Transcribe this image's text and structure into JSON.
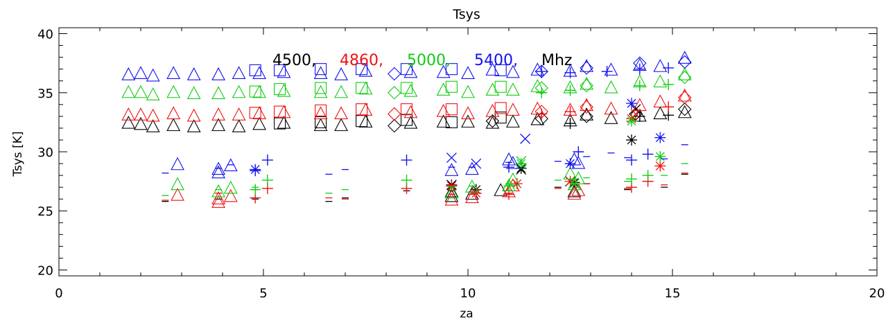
{
  "chart_data": {
    "type": "scatter",
    "title": "Tsys",
    "xlabel": "za",
    "ylabel": "Tsys [K]",
    "xlim": [
      0,
      20
    ],
    "ylim": [
      19.5,
      40.5
    ],
    "x_ticks": [
      0,
      5,
      10,
      15,
      20
    ],
    "y_ticks": [
      20,
      25,
      30,
      35,
      40
    ],
    "x_tick_labels": [
      "0",
      "5",
      "10",
      "15",
      "20"
    ],
    "y_tick_labels": [
      "20",
      "25",
      "30",
      "35",
      "40"
    ],
    "legend": {
      "placement": "top-center",
      "entries": [
        {
          "label": "4500",
          "color": "#000000"
        },
        {
          "label": "4860",
          "color": "#ee1111"
        },
        {
          "label": "5000",
          "color": "#11cc11"
        },
        {
          "label": "5400",
          "color": "#1111ee"
        }
      ],
      "unit": "Mhz"
    },
    "series": [
      {
        "color": "#000000",
        "triangles": [
          [
            1.7,
            32.4
          ],
          [
            2.0,
            32.3
          ],
          [
            2.3,
            32.1
          ],
          [
            2.8,
            32.2
          ],
          [
            3.3,
            32.1
          ],
          [
            3.9,
            32.2
          ],
          [
            4.4,
            32.1
          ],
          [
            4.9,
            32.3
          ],
          [
            5.5,
            32.4
          ],
          [
            6.4,
            32.2
          ],
          [
            6.9,
            32.2
          ],
          [
            7.5,
            32.5
          ],
          [
            8.6,
            32.4
          ],
          [
            9.4,
            32.5
          ],
          [
            10.0,
            32.5
          ],
          [
            10.6,
            32.4
          ],
          [
            11.1,
            32.5
          ],
          [
            11.7,
            32.7
          ],
          [
            12.5,
            32.6
          ],
          [
            12.9,
            33.1
          ],
          [
            13.5,
            32.8
          ],
          [
            14.2,
            33.0
          ],
          [
            14.7,
            33.2
          ],
          [
            15.3,
            33.3
          ],
          [
            9.6,
            26.6
          ],
          [
            9.6,
            26.2
          ],
          [
            10.1,
            26.4
          ],
          [
            10.8,
            26.7
          ],
          [
            12.6,
            26.6
          ]
        ],
        "squares": [
          [
            5.4,
            32.4
          ],
          [
            6.4,
            32.5
          ],
          [
            7.4,
            32.6
          ],
          [
            8.5,
            32.7
          ],
          [
            9.6,
            32.5
          ],
          [
            10.8,
            32.9
          ]
        ],
        "diamonds": [
          [
            8.2,
            32.2
          ],
          [
            10.6,
            32.6
          ],
          [
            11.8,
            32.8
          ],
          [
            12.9,
            33.0
          ],
          [
            14.1,
            33.2
          ],
          [
            15.3,
            33.6
          ]
        ],
        "plus": [
          [
            12.5,
            32.4
          ],
          [
            14.2,
            33.0
          ],
          [
            14.9,
            33.1
          ]
        ],
        "asterisk": [
          [
            14.0,
            31.0
          ],
          [
            9.6,
            27.2
          ],
          [
            10.2,
            26.8
          ],
          [
            11.3,
            28.6
          ],
          [
            12.6,
            27.4
          ]
        ],
        "x_marks": [
          [
            9.6,
            27.2
          ],
          [
            11.3,
            28.5
          ],
          [
            12.5,
            27.5
          ],
          [
            14.1,
            33.6
          ]
        ],
        "dashes": [
          [
            2.6,
            25.8
          ],
          [
            3.9,
            26.0
          ],
          [
            4.8,
            26.0
          ],
          [
            6.6,
            25.8
          ],
          [
            7.0,
            26.1
          ],
          [
            8.5,
            26.7
          ],
          [
            9.6,
            26.7
          ],
          [
            10.1,
            26.6
          ],
          [
            11.0,
            26.7
          ],
          [
            12.2,
            27.0
          ],
          [
            12.9,
            27.3
          ],
          [
            13.9,
            26.8
          ],
          [
            14.8,
            27.0
          ],
          [
            15.3,
            28.1
          ]
        ]
      },
      {
        "color": "#ee1111",
        "triangles": [
          [
            1.7,
            33.1
          ],
          [
            2.0,
            33.1
          ],
          [
            2.3,
            33.0
          ],
          [
            2.8,
            33.2
          ],
          [
            3.3,
            33.0
          ],
          [
            3.9,
            33.1
          ],
          [
            4.4,
            33.1
          ],
          [
            4.9,
            33.2
          ],
          [
            5.5,
            33.3
          ],
          [
            6.4,
            33.2
          ],
          [
            6.9,
            33.2
          ],
          [
            7.5,
            33.5
          ],
          [
            8.6,
            33.3
          ],
          [
            9.4,
            33.4
          ],
          [
            10.0,
            33.2
          ],
          [
            10.6,
            33.4
          ],
          [
            11.1,
            33.5
          ],
          [
            11.7,
            33.6
          ],
          [
            12.5,
            33.5
          ],
          [
            12.9,
            33.9
          ],
          [
            13.5,
            33.6
          ],
          [
            14.2,
            33.9
          ],
          [
            14.7,
            34.2
          ],
          [
            15.3,
            34.7
          ],
          [
            2.9,
            26.3
          ],
          [
            3.9,
            25.7
          ],
          [
            3.9,
            26.0
          ],
          [
            4.2,
            26.2
          ],
          [
            9.6,
            25.9
          ],
          [
            10.1,
            26.1
          ],
          [
            11.0,
            26.6
          ],
          [
            11.1,
            27.1
          ],
          [
            12.6,
            26.4
          ],
          [
            12.7,
            26.7
          ]
        ],
        "squares": [
          [
            4.8,
            33.3
          ],
          [
            5.4,
            33.4
          ],
          [
            6.4,
            33.5
          ],
          [
            7.4,
            33.6
          ],
          [
            8.5,
            33.6
          ],
          [
            9.6,
            33.6
          ],
          [
            10.8,
            33.7
          ]
        ],
        "diamonds": [
          [
            8.2,
            33.2
          ],
          [
            11.8,
            33.4
          ],
          [
            12.9,
            33.8
          ],
          [
            15.3,
            34.6
          ]
        ],
        "plus": [
          [
            4.8,
            26.1
          ],
          [
            5.1,
            26.9
          ],
          [
            8.5,
            26.9
          ],
          [
            11.0,
            26.4
          ],
          [
            11.8,
            33.2
          ],
          [
            12.5,
            33.4
          ],
          [
            14.0,
            27.0
          ],
          [
            14.4,
            27.5
          ],
          [
            14.9,
            33.8
          ]
        ],
        "asterisk": [
          [
            14.0,
            32.8
          ],
          [
            14.7,
            28.8
          ],
          [
            9.6,
            27.1
          ],
          [
            10.2,
            26.5
          ],
          [
            11.2,
            27.3
          ],
          [
            12.5,
            27.5
          ]
        ],
        "x_marks": [
          [
            14.1,
            33.2
          ]
        ],
        "dashes": [
          [
            2.6,
            25.9
          ],
          [
            3.9,
            26.5
          ],
          [
            4.8,
            26.8
          ],
          [
            6.6,
            26.1
          ],
          [
            7.0,
            26.0
          ],
          [
            9.6,
            26.4
          ],
          [
            10.1,
            26.4
          ],
          [
            11.0,
            26.5
          ],
          [
            12.2,
            26.9
          ],
          [
            12.9,
            27.3
          ],
          [
            13.9,
            26.9
          ],
          [
            14.8,
            27.2
          ],
          [
            15.3,
            28.2
          ]
        ]
      },
      {
        "color": "#11cc11",
        "triangles": [
          [
            1.7,
            35.0
          ],
          [
            2.0,
            35.0
          ],
          [
            2.3,
            34.8
          ],
          [
            2.8,
            35.0
          ],
          [
            3.3,
            34.9
          ],
          [
            3.9,
            34.9
          ],
          [
            4.4,
            35.0
          ],
          [
            4.9,
            35.0
          ],
          [
            5.5,
            35.1
          ],
          [
            6.4,
            35.0
          ],
          [
            6.9,
            35.0
          ],
          [
            7.5,
            35.3
          ],
          [
            8.6,
            35.1
          ],
          [
            9.4,
            35.2
          ],
          [
            10.0,
            35.0
          ],
          [
            10.6,
            35.2
          ],
          [
            11.1,
            35.2
          ],
          [
            11.7,
            35.5
          ],
          [
            12.5,
            35.4
          ],
          [
            12.9,
            35.7
          ],
          [
            13.5,
            35.4
          ],
          [
            14.2,
            35.9
          ],
          [
            14.7,
            35.9
          ],
          [
            15.3,
            36.5
          ],
          [
            2.9,
            27.2
          ],
          [
            3.9,
            26.6
          ],
          [
            4.2,
            26.9
          ],
          [
            9.6,
            26.5
          ],
          [
            10.1,
            27.0
          ],
          [
            11.0,
            27.1
          ],
          [
            11.1,
            27.6
          ],
          [
            12.6,
            27.2
          ],
          [
            12.7,
            27.7
          ],
          [
            12.5,
            28.1
          ]
        ],
        "squares": [
          [
            4.8,
            35.1
          ],
          [
            5.4,
            35.3
          ],
          [
            6.4,
            35.4
          ],
          [
            7.4,
            35.4
          ],
          [
            8.5,
            35.4
          ],
          [
            9.6,
            35.5
          ],
          [
            10.8,
            35.5
          ]
        ],
        "diamonds": [
          [
            8.2,
            35.0
          ],
          [
            11.8,
            35.4
          ],
          [
            12.9,
            35.6
          ],
          [
            15.3,
            36.3
          ]
        ],
        "plus": [
          [
            4.8,
            26.8
          ],
          [
            5.1,
            27.6
          ],
          [
            8.5,
            27.6
          ],
          [
            11.0,
            27.1
          ],
          [
            11.8,
            35.0
          ],
          [
            12.5,
            35.2
          ],
          [
            14.0,
            27.7
          ],
          [
            14.2,
            35.6
          ],
          [
            14.4,
            28.0
          ],
          [
            14.9,
            35.7
          ]
        ],
        "asterisk": [
          [
            14.0,
            32.6
          ],
          [
            14.7,
            29.6
          ],
          [
            11.3,
            29.0
          ]
        ],
        "x_marks": [
          [
            11.3,
            29.2
          ],
          [
            12.6,
            27.3
          ]
        ],
        "dashes": [
          [
            2.6,
            26.3
          ],
          [
            3.9,
            26.8
          ],
          [
            4.8,
            27.0
          ],
          [
            6.6,
            26.5
          ],
          [
            7.0,
            26.8
          ],
          [
            9.6,
            27.0
          ],
          [
            10.1,
            27.1
          ],
          [
            11.0,
            27.3
          ],
          [
            12.2,
            27.6
          ],
          [
            12.9,
            27.8
          ],
          [
            13.9,
            27.5
          ],
          [
            14.8,
            28.0
          ],
          [
            15.3,
            29.0
          ]
        ]
      },
      {
        "color": "#1111ee",
        "triangles": [
          [
            1.7,
            36.5
          ],
          [
            2.0,
            36.6
          ],
          [
            2.3,
            36.4
          ],
          [
            2.8,
            36.6
          ],
          [
            3.3,
            36.5
          ],
          [
            3.9,
            36.5
          ],
          [
            4.4,
            36.6
          ],
          [
            4.9,
            36.6
          ],
          [
            5.5,
            36.7
          ],
          [
            6.4,
            36.6
          ],
          [
            6.9,
            36.5
          ],
          [
            7.5,
            36.8
          ],
          [
            8.6,
            36.7
          ],
          [
            9.4,
            36.7
          ],
          [
            10.0,
            36.6
          ],
          [
            10.6,
            36.9
          ],
          [
            11.1,
            36.7
          ],
          [
            11.7,
            36.9
          ],
          [
            12.5,
            36.8
          ],
          [
            12.9,
            37.2
          ],
          [
            13.5,
            36.9
          ],
          [
            14.2,
            37.3
          ],
          [
            14.7,
            37.2
          ],
          [
            15.3,
            37.9
          ],
          [
            2.9,
            28.9
          ],
          [
            3.9,
            28.2
          ],
          [
            3.9,
            28.5
          ],
          [
            4.2,
            28.8
          ],
          [
            9.6,
            28.4
          ],
          [
            10.1,
            28.5
          ],
          [
            11.0,
            29.3
          ],
          [
            11.1,
            29.0
          ],
          [
            12.6,
            29.3
          ],
          [
            12.7,
            29.0
          ]
        ],
        "squares": [
          [
            4.8,
            36.9
          ],
          [
            5.4,
            36.9
          ],
          [
            6.4,
            37.0
          ],
          [
            7.4,
            37.0
          ],
          [
            8.5,
            37.0
          ],
          [
            9.6,
            37.0
          ],
          [
            10.8,
            36.9
          ]
        ],
        "diamonds": [
          [
            8.2,
            36.6
          ],
          [
            11.8,
            36.8
          ],
          [
            12.9,
            37.1
          ],
          [
            14.2,
            37.5
          ],
          [
            15.3,
            37.6
          ]
        ],
        "plus": [
          [
            4.8,
            28.4
          ],
          [
            5.1,
            29.3
          ],
          [
            8.5,
            29.3
          ],
          [
            11.0,
            28.7
          ],
          [
            11.8,
            36.8
          ],
          [
            12.5,
            36.7
          ],
          [
            13.4,
            36.8
          ],
          [
            12.7,
            30.0
          ],
          [
            14.0,
            29.3
          ],
          [
            14.2,
            37.0
          ],
          [
            14.4,
            29.8
          ],
          [
            14.9,
            37.1
          ]
        ],
        "asterisk": [
          [
            4.8,
            28.5
          ],
          [
            14.0,
            34.1
          ],
          [
            14.7,
            31.2
          ],
          [
            12.5,
            29.0
          ]
        ],
        "x_marks": [
          [
            9.6,
            29.5
          ],
          [
            10.2,
            29.0
          ],
          [
            11.4,
            31.1
          ]
        ],
        "dashes": [
          [
            2.6,
            28.2
          ],
          [
            3.9,
            28.6
          ],
          [
            4.8,
            28.5
          ],
          [
            4.2,
            28.9
          ],
          [
            6.6,
            28.1
          ],
          [
            7.0,
            28.5
          ],
          [
            9.6,
            28.7
          ],
          [
            10.1,
            28.7
          ],
          [
            11.0,
            29.1
          ],
          [
            12.2,
            29.2
          ],
          [
            12.9,
            29.6
          ],
          [
            13.5,
            29.9
          ],
          [
            13.9,
            29.5
          ],
          [
            14.8,
            29.4
          ],
          [
            15.3,
            30.6
          ]
        ]
      }
    ]
  }
}
